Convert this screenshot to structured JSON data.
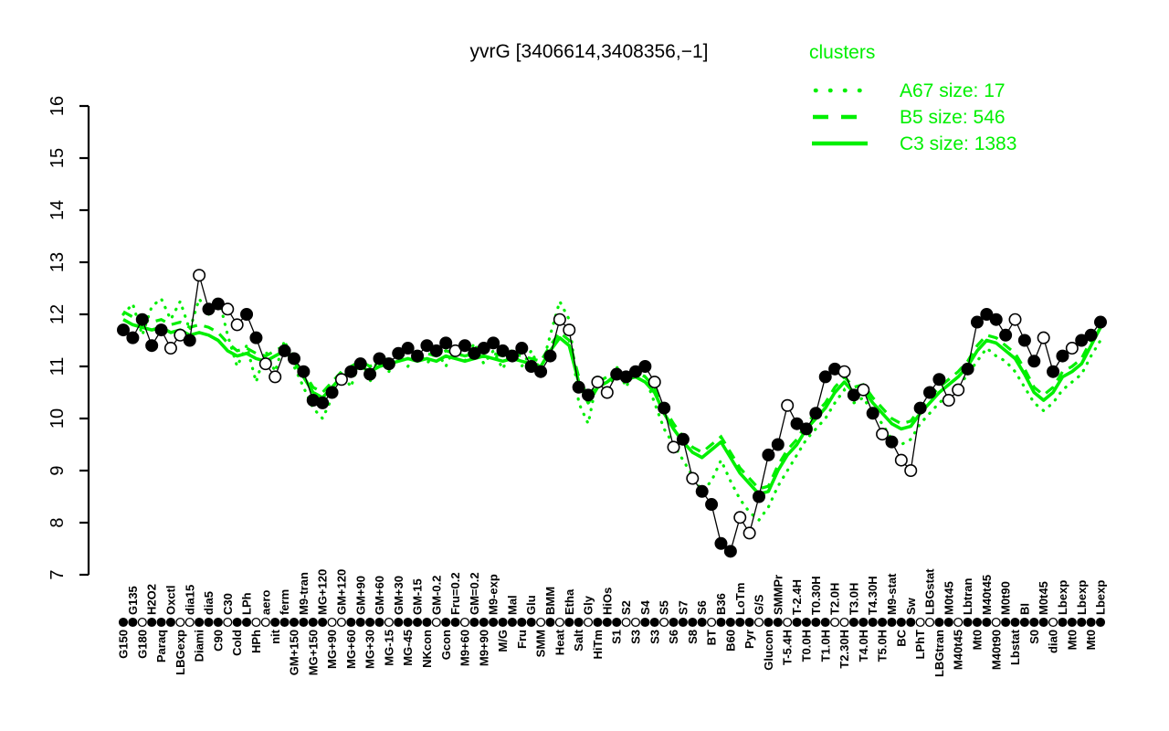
{
  "title": "yvrG [3406614,3408356,−1]",
  "legend": {
    "title": "clusters",
    "entries": [
      {
        "style": "dotted",
        "label": "A67 size: 17"
      },
      {
        "style": "dashed",
        "label": "B5 size: 546"
      },
      {
        "style": "solid",
        "label": "C3 size: 1383"
      }
    ]
  },
  "colors": {
    "cluster_green": "#00ef00",
    "profile_black": "#000000",
    "background": "#ffffff"
  },
  "chart_data": {
    "type": "line",
    "title": "yvrG [3406614,3408356,−1]",
    "xlabel": "",
    "ylabel": "",
    "ylim": [
      7,
      16
    ],
    "yticks": [
      7,
      8,
      9,
      10,
      11,
      12,
      13,
      14,
      15,
      16
    ],
    "grid": false,
    "legend_position": "top-right",
    "categories": [
      "G150",
      "G135",
      "G180",
      "H2O2",
      "Paraq",
      "Oxctl",
      "LBGexp",
      "dia15",
      "Diami",
      "dia5",
      "C90",
      "C30",
      "Cold",
      "LPh",
      "HPh",
      "aero",
      "nit",
      "ferm",
      "GM+150",
      "M9-tran",
      "MG+150",
      "MG+120",
      "MG+90",
      "GM+120",
      "MG+60",
      "GM+90",
      "MG+30",
      "GM+60",
      "MG-15",
      "GM+30",
      "MG-45",
      "GM-15",
      "NKcon",
      "GM-0.2",
      "Gcon",
      "Fru=0.2",
      "M9+60",
      "GM=0.2",
      "M9+90",
      "M9-exp",
      "M/G",
      "Mal",
      "Fru",
      "Glu",
      "SMM",
      "BMM",
      "Heat",
      "Etha",
      "Salt",
      "Gly",
      "HiTm",
      "HiOs",
      "S1",
      "S2",
      "S3",
      "S4",
      "S3",
      "S5",
      "S6",
      "S7",
      "S8",
      "S6",
      "BT",
      "B36",
      "B60",
      "LoTm",
      "Pyr",
      "G/S",
      "Glucon",
      "SMMPr",
      "T-5.4H",
      "T-2.4H",
      "T0.0H",
      "T0.30H",
      "T1.0H",
      "T2.0H",
      "T2.30H",
      "T3.0H",
      "T4.0H",
      "T4.30H",
      "T5.0H",
      "M9-stat",
      "BC",
      "Sw",
      "LPhT",
      "LBGstat",
      "LBGtran",
      "M0t45",
      "M40t45",
      "Lbtran",
      "Mt0",
      "M40t45",
      "M40t90",
      "M0t90",
      "Lbstat",
      "BI",
      "S0",
      "M0t45",
      "dia0",
      "Lbexp",
      "Mt0",
      "Lbexp",
      "Mt0",
      "Lbexp"
    ],
    "label_row": [
      "b",
      "t",
      "b",
      "t",
      "b",
      "t",
      "b",
      "t",
      "b",
      "t",
      "b",
      "t",
      "b",
      "t",
      "b",
      "t",
      "b",
      "t",
      "b",
      "t",
      "b",
      "t",
      "b",
      "t",
      "b",
      "t",
      "b",
      "t",
      "b",
      "t",
      "b",
      "t",
      "b",
      "t",
      "b",
      "t",
      "b",
      "t",
      "b",
      "t",
      "b",
      "t",
      "b",
      "t",
      "b",
      "t",
      "b",
      "t",
      "b",
      "t",
      "b",
      "t",
      "b",
      "t",
      "b",
      "t",
      "b",
      "t",
      "b",
      "t",
      "b",
      "t",
      "b",
      "t",
      "b",
      "t",
      "b",
      "t",
      "b",
      "t",
      "b",
      "t",
      "b",
      "t",
      "b",
      "t",
      "b",
      "t",
      "b",
      "t",
      "b",
      "t",
      "b",
      "t",
      "b",
      "t",
      "b",
      "t",
      "b",
      "t",
      "b",
      "t",
      "b",
      "t",
      "b",
      "t",
      "b",
      "t",
      "b",
      "t",
      "b",
      "t",
      "b",
      "t"
    ],
    "series": [
      {
        "name": "yvrG profile",
        "color": "#000000",
        "style": "line+markers",
        "values": [
          11.7,
          11.55,
          11.9,
          11.4,
          11.7,
          11.35,
          11.6,
          11.5,
          12.75,
          12.1,
          12.2,
          12.1,
          11.8,
          12.0,
          11.55,
          11.05,
          10.8,
          11.3,
          11.15,
          10.9,
          10.35,
          10.3,
          10.5,
          10.75,
          10.9,
          11.05,
          10.85,
          11.15,
          11.05,
          11.25,
          11.35,
          11.2,
          11.4,
          11.3,
          11.45,
          11.3,
          11.4,
          11.25,
          11.35,
          11.45,
          11.3,
          11.2,
          11.35,
          11.0,
          10.9,
          11.2,
          11.9,
          11.7,
          10.6,
          10.45,
          10.7,
          10.5,
          10.85,
          10.8,
          10.9,
          11.0,
          10.7,
          10.2,
          9.45,
          9.6,
          8.85,
          8.6,
          8.35,
          7.6,
          7.45,
          8.1,
          7.8,
          8.5,
          9.3,
          9.5,
          10.25,
          9.9,
          9.8,
          10.1,
          10.8,
          10.95,
          10.9,
          10.45,
          10.55,
          10.1,
          9.7,
          9.55,
          9.2,
          9.0,
          10.2,
          10.5,
          10.75,
          10.35,
          10.55,
          10.95,
          11.85,
          12.0,
          11.9,
          11.6,
          11.9,
          11.5,
          11.1,
          11.55,
          10.9,
          11.2,
          11.35,
          11.5,
          11.6,
          11.85
        ],
        "open_marker": [
          0,
          0,
          0,
          0,
          0,
          1,
          1,
          0,
          1,
          0,
          0,
          1,
          1,
          0,
          0,
          1,
          1,
          0,
          0,
          0,
          0,
          0,
          0,
          1,
          0,
          0,
          0,
          0,
          0,
          0,
          0,
          0,
          0,
          0,
          0,
          1,
          0,
          0,
          0,
          0,
          0,
          0,
          0,
          0,
          0,
          0,
          1,
          1,
          0,
          0,
          1,
          1,
          0,
          0,
          0,
          0,
          1,
          0,
          1,
          0,
          1,
          0,
          0,
          0,
          0,
          1,
          1,
          0,
          0,
          0,
          1,
          0,
          0,
          0,
          0,
          0,
          1,
          0,
          1,
          0,
          1,
          0,
          1,
          1,
          0,
          0,
          0,
          1,
          1,
          0,
          0,
          0,
          0,
          0,
          1,
          0,
          0,
          1,
          0,
          0,
          1,
          0,
          0,
          0
        ]
      },
      {
        "name": "A67 size: 17",
        "color": "#00ef00",
        "style": "dotted",
        "values": [
          12.0,
          12.2,
          11.6,
          12.15,
          12.3,
          11.9,
          12.25,
          11.7,
          12.3,
          12.0,
          12.35,
          11.6,
          11.0,
          11.4,
          10.7,
          11.3,
          10.9,
          11.5,
          11.0,
          10.6,
          10.2,
          10.0,
          10.4,
          10.9,
          10.6,
          11.2,
          10.7,
          11.25,
          10.9,
          11.3,
          11.0,
          11.35,
          11.05,
          11.3,
          11.0,
          11.4,
          11.1,
          11.45,
          11.05,
          11.3,
          10.95,
          11.35,
          11.0,
          11.3,
          10.9,
          11.6,
          12.25,
          11.9,
          10.3,
          9.9,
          10.8,
          10.4,
          11.0,
          10.6,
          11.0,
          10.8,
          10.3,
          9.8,
          9.5,
          9.2,
          8.9,
          8.6,
          8.8,
          9.2,
          8.8,
          8.45,
          8.2,
          8.05,
          8.3,
          8.7,
          9.0,
          9.3,
          9.6,
          9.8,
          10.0,
          10.3,
          10.55,
          10.3,
          10.4,
          10.1,
          9.9,
          9.6,
          9.5,
          9.6,
          9.9,
          10.1,
          10.3,
          10.45,
          10.6,
          10.85,
          11.1,
          11.35,
          11.2,
          11.1,
          10.9,
          10.6,
          10.3,
          10.15,
          10.3,
          10.55,
          10.7,
          10.85,
          11.2,
          11.5
        ]
      },
      {
        "name": "B5 size: 546",
        "color": "#00ef00",
        "style": "dashed",
        "values": [
          12.05,
          11.95,
          11.9,
          11.85,
          11.9,
          11.8,
          11.85,
          11.75,
          11.8,
          11.75,
          11.65,
          11.45,
          11.3,
          11.35,
          11.25,
          11.2,
          11.3,
          11.4,
          11.2,
          10.9,
          10.6,
          10.5,
          10.7,
          10.9,
          11.0,
          11.1,
          11.0,
          11.1,
          11.15,
          11.2,
          11.25,
          11.2,
          11.25,
          11.2,
          11.3,
          11.25,
          11.2,
          11.25,
          11.3,
          11.25,
          11.2,
          11.25,
          11.2,
          11.15,
          11.1,
          11.4,
          11.65,
          11.5,
          10.8,
          10.4,
          10.7,
          10.8,
          10.95,
          10.85,
          10.9,
          10.8,
          10.6,
          10.2,
          9.9,
          9.65,
          9.45,
          9.35,
          9.5,
          9.65,
          9.35,
          9.05,
          8.85,
          8.65,
          8.7,
          9.1,
          9.4,
          9.6,
          9.9,
          10.1,
          10.3,
          10.6,
          10.8,
          10.6,
          10.65,
          10.4,
          10.2,
          10.0,
          9.9,
          9.95,
          10.2,
          10.4,
          10.6,
          10.75,
          10.9,
          11.1,
          11.4,
          11.6,
          11.55,
          11.4,
          11.25,
          10.95,
          10.6,
          10.45,
          10.6,
          10.9,
          11.0,
          11.15,
          11.5,
          11.85
        ]
      },
      {
        "name": "C3 size: 1383",
        "color": "#00ef00",
        "style": "solid",
        "values": [
          11.9,
          11.8,
          11.75,
          11.7,
          11.75,
          11.65,
          11.7,
          11.6,
          11.65,
          11.6,
          11.5,
          11.3,
          11.2,
          11.25,
          11.15,
          11.1,
          11.2,
          11.3,
          11.1,
          10.8,
          10.5,
          10.4,
          10.6,
          10.8,
          10.9,
          11.0,
          10.9,
          11.0,
          11.05,
          11.1,
          11.15,
          11.1,
          11.15,
          11.1,
          11.2,
          11.15,
          11.1,
          11.15,
          11.2,
          11.15,
          11.1,
          11.15,
          11.1,
          11.05,
          11.0,
          11.3,
          11.55,
          11.4,
          10.7,
          10.3,
          10.6,
          10.7,
          10.85,
          10.75,
          10.8,
          10.7,
          10.5,
          10.1,
          9.8,
          9.55,
          9.35,
          9.25,
          9.4,
          9.55,
          9.25,
          8.95,
          8.75,
          8.55,
          8.6,
          9.0,
          9.3,
          9.5,
          9.8,
          10.0,
          10.2,
          10.5,
          10.7,
          10.5,
          10.55,
          10.3,
          10.1,
          9.9,
          9.8,
          9.85,
          10.1,
          10.3,
          10.5,
          10.65,
          10.8,
          11.0,
          11.3,
          11.5,
          11.45,
          11.3,
          11.15,
          10.85,
          10.5,
          10.35,
          10.5,
          10.8,
          10.9,
          11.05,
          11.4,
          11.75
        ]
      }
    ],
    "rug_filled": [
      1,
      1,
      0,
      1,
      1,
      1,
      0,
      0,
      1,
      1,
      1,
      0,
      1,
      1,
      0,
      0,
      1,
      1,
      1,
      1,
      1,
      1,
      0,
      0,
      1,
      1,
      1,
      1,
      0,
      1,
      1,
      1,
      1,
      0,
      1,
      1,
      0,
      1,
      1,
      1,
      1,
      1,
      1,
      1,
      0,
      1,
      0,
      1,
      1,
      0,
      1,
      1,
      1,
      0,
      0,
      1,
      1,
      0,
      1,
      1,
      1,
      1,
      0,
      1,
      1,
      1,
      1,
      0,
      1,
      1,
      0,
      1,
      1,
      1,
      1,
      0,
      0,
      1,
      1,
      1,
      1,
      1,
      1,
      1,
      0,
      0,
      1,
      1,
      0,
      1,
      1,
      1,
      0,
      1,
      1,
      1,
      1,
      1,
      0,
      1,
      1,
      1,
      1,
      1
    ]
  }
}
